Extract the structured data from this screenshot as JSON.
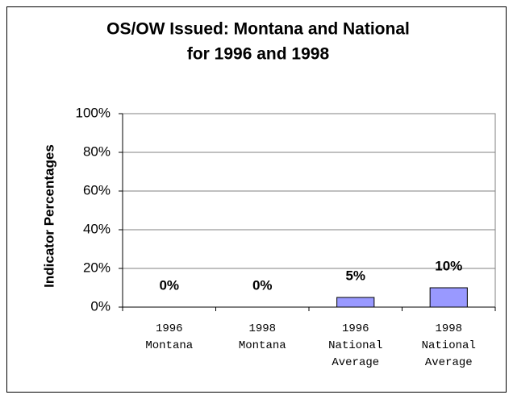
{
  "chart_data": {
    "type": "bar",
    "title": [
      "OS/OW Issued: Montana and National",
      "for 1996 and 1998"
    ],
    "y_label": "Indicator Percentages",
    "categories": [
      "1996 Montana",
      "1998 Montana",
      "1996 National Average",
      "1998 National Average"
    ],
    "values": [
      0,
      0,
      5,
      10
    ],
    "value_labels": [
      "0%",
      "0%",
      "5%",
      "10%"
    ],
    "color": "#9999ff",
    "ylim": [
      0,
      100
    ],
    "yticks": [
      {
        "value": 0,
        "label": "0%"
      },
      {
        "value": 20,
        "label": "20%"
      },
      {
        "value": 40,
        "label": "40%"
      },
      {
        "value": 60,
        "label": "60%"
      },
      {
        "value": 80,
        "label": "80%"
      },
      {
        "value": 100,
        "label": "100%"
      }
    ],
    "grid": true
  }
}
